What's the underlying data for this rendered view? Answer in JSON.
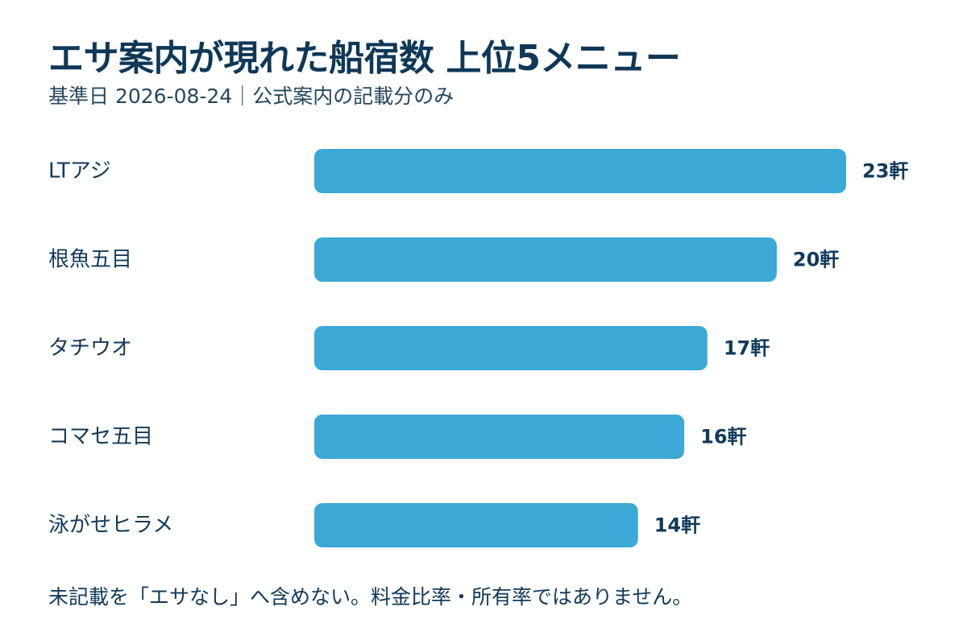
{
  "title": "エサ案内が現れた船宿数 上位5メニュー",
  "subtitle": "基準日 2026-08-24｜公式案内の記載分のみ",
  "footnote": "未記載を「エサなし」へ含めない。料金比率・所有率ではありません。",
  "colors": {
    "bar": "#3ba8d6",
    "text": "#103a5c"
  },
  "chart_data": {
    "type": "bar",
    "orientation": "horizontal",
    "categories": [
      "LTアジ",
      "根魚五目",
      "タチウオ",
      "コマセ五目",
      "泳がせヒラメ"
    ],
    "values": [
      23,
      20,
      17,
      16,
      14
    ],
    "value_labels": [
      "23軒",
      "20軒",
      "17軒",
      "16軒",
      "14軒"
    ],
    "unit": "軒",
    "xlim": [
      0,
      23
    ],
    "grid": false,
    "legend": "none"
  }
}
